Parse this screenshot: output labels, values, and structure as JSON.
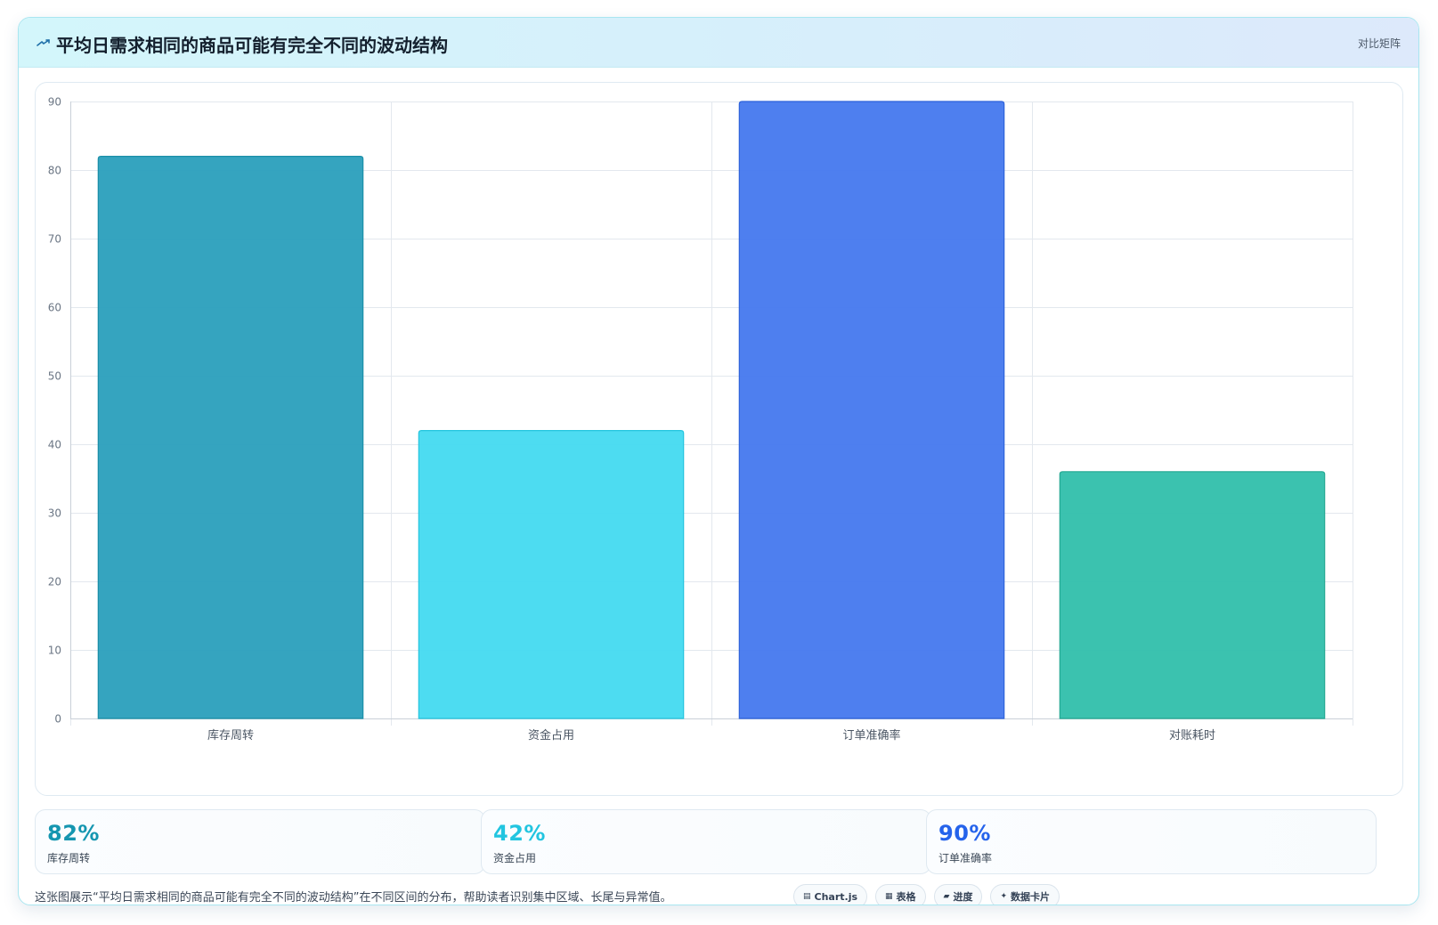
{
  "header": {
    "title": "平均日需求相同的商品可能有完全不同的波动结构",
    "badge": "对比矩阵",
    "icon": "trend-line-icon"
  },
  "chart_data": {
    "type": "bar",
    "categories": [
      "库存周转",
      "资金占用",
      "订单准确率",
      "对账耗时"
    ],
    "values": [
      82,
      42,
      90,
      36
    ],
    "colors": [
      "#2a9fbc",
      "#43daf0",
      "#4478ee",
      "#30bfab"
    ],
    "border_colors": [
      "#1b8fa8",
      "#25c5de",
      "#2d62db",
      "#22a892"
    ],
    "ylim": [
      0,
      90
    ],
    "yticks": [
      0,
      10,
      20,
      30,
      40,
      50,
      60,
      70,
      80,
      90
    ],
    "grid": true,
    "legend": "none",
    "title": "",
    "xlabel": "",
    "ylabel": ""
  },
  "stats": [
    {
      "value": "82%",
      "label": "库存周转",
      "color": "#1596b0"
    },
    {
      "value": "42%",
      "label": "资金占用",
      "color": "#22c5e0"
    },
    {
      "value": "90%",
      "label": "订单准确率",
      "color": "#2563eb"
    }
  ],
  "caption": "这张图展示“平均日需求相同的商品可能有完全不同的波动结构”在不同区间的分布，帮助读者识别集中区域、长尾与异常值。",
  "chips": [
    {
      "glyph": "▤",
      "icon": "chart-icon",
      "label": "Chart.js"
    },
    {
      "glyph": "▦",
      "icon": "table-icon",
      "label": "表格"
    },
    {
      "glyph": "▰",
      "icon": "progress-icon",
      "label": "进度"
    },
    {
      "glyph": "✦",
      "icon": "sparkle-icon",
      "label": "数据卡片"
    }
  ]
}
